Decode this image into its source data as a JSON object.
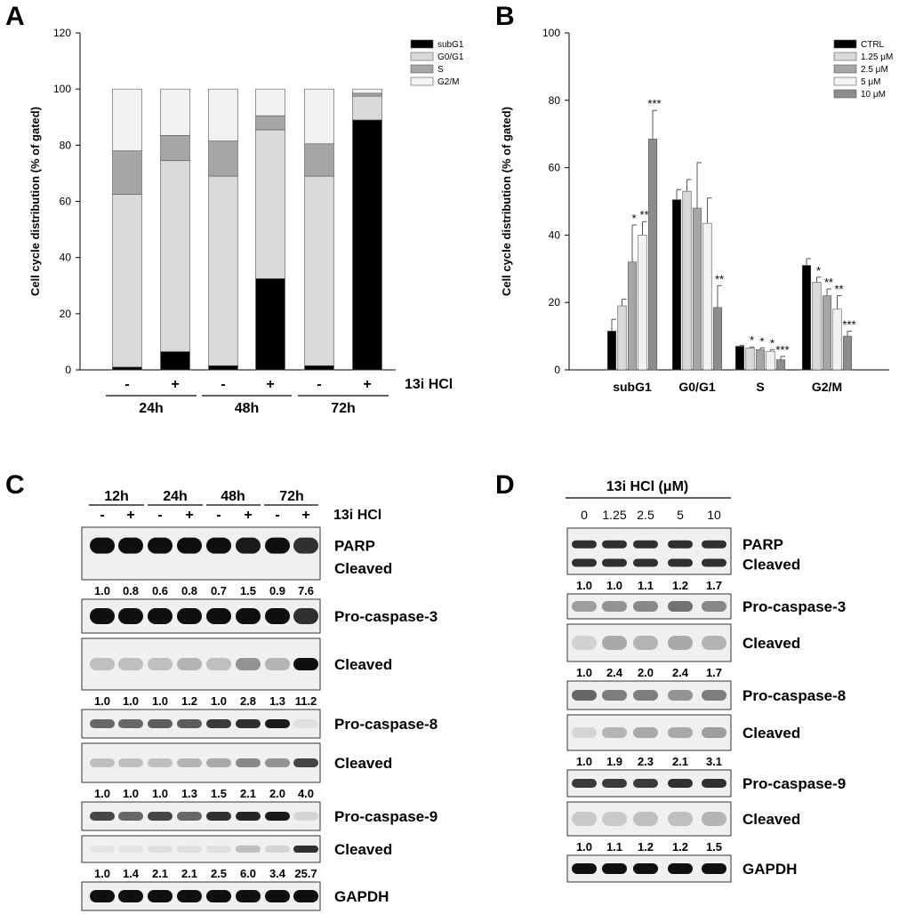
{
  "panels": {
    "A": {
      "letter": "A",
      "chart_data": {
        "type": "bar",
        "stacked": true,
        "ylabel": "Cell cycle distribution (% of gated)",
        "ylim": [
          0,
          120
        ],
        "yticks": [
          0,
          20,
          40,
          60,
          80,
          100,
          120
        ],
        "treatment_label": "13i HCl",
        "categories": [
          "-",
          "+",
          "-",
          "+",
          "-",
          "+"
        ],
        "groups": [
          {
            "label": "24h",
            "bars": [
              0,
              1
            ]
          },
          {
            "label": "48h",
            "bars": [
              2,
              3
            ]
          },
          {
            "label": "72h",
            "bars": [
              4,
              5
            ]
          }
        ],
        "series": [
          {
            "name": "subG1",
            "color": "#000000",
            "values": [
              1,
              6.5,
              1.5,
              32.5,
              1.5,
              89
            ]
          },
          {
            "name": "G0/G1",
            "color": "#d9d9d9",
            "values": [
              61.5,
              68,
              67.5,
              53,
              67.5,
              8.5
            ]
          },
          {
            "name": "S",
            "color": "#a6a6a6",
            "values": [
              15.5,
              9,
              12.5,
              5,
              11.5,
              1
            ]
          },
          {
            "name": "G2/M",
            "color": "#f2f2f2",
            "values": [
              22,
              16.5,
              18.5,
              9.5,
              19.5,
              1.5
            ]
          }
        ]
      }
    },
    "B": {
      "letter": "B",
      "chart_data": {
        "type": "bar",
        "ylabel": "Cell cycle distribution (% of gated)",
        "ylim": [
          0,
          100
        ],
        "yticks": [
          0,
          20,
          40,
          60,
          80,
          100
        ],
        "categories": [
          "subG1",
          "G0/G1",
          "S",
          "G2/M"
        ],
        "series": [
          {
            "name": "CTRL",
            "color": "#000000",
            "values": [
              11.5,
              50.5,
              7,
              31
            ],
            "errors": [
              3.5,
              3,
              0.3,
              2
            ],
            "sig": [
              "",
              "",
              "",
              ""
            ]
          },
          {
            "name": "1.25 μM",
            "color": "#d9d9d9",
            "values": [
              19,
              53,
              6.5,
              26
            ],
            "errors": [
              2,
              3.5,
              0.3,
              1.5
            ],
            "sig": [
              "",
              "",
              "*",
              "*"
            ]
          },
          {
            "name": "2.5 μM",
            "color": "#a6a6a6",
            "values": [
              32,
              48,
              6,
              22
            ],
            "errors": [
              11,
              13.5,
              0.5,
              2
            ],
            "sig": [
              "*",
              "",
              "*",
              "**"
            ]
          },
          {
            "name": "5 μM",
            "color": "#f2f2f2",
            "values": [
              40,
              43.5,
              5.5,
              18
            ],
            "errors": [
              4,
              7.5,
              0.5,
              4
            ],
            "sig": [
              "**",
              "",
              "*",
              "**"
            ]
          },
          {
            "name": "10 μM",
            "color": "#8c8c8c",
            "values": [
              68.5,
              18.5,
              3,
              10
            ],
            "errors": [
              8.5,
              6.5,
              1,
              1.5
            ],
            "sig": [
              "***",
              "**",
              "***",
              "***"
            ]
          }
        ]
      }
    },
    "C": {
      "letter": "C",
      "treatment_label": "13i HCl",
      "time_groups": [
        "12h",
        "24h",
        "48h",
        "72h"
      ],
      "lane_signs": [
        "-",
        "+",
        "-",
        "+",
        "-",
        "+",
        "-",
        "+"
      ],
      "blots": [
        {
          "labels": [
            "PARP",
            "Cleaved"
          ],
          "ratios": [
            "1.0",
            "0.8",
            "0.6",
            "0.8",
            "0.7",
            "1.5",
            "0.9",
            "7.6"
          ]
        },
        {
          "labels": [
            "Pro-caspase-3"
          ],
          "ratios": []
        },
        {
          "labels": [
            "Cleaved"
          ],
          "ratios": [
            "1.0",
            "1.0",
            "1.0",
            "1.2",
            "1.0",
            "2.8",
            "1.3",
            "11.2"
          ]
        },
        {
          "labels": [
            "Pro-caspase-8"
          ],
          "ratios": []
        },
        {
          "labels": [
            "Cleaved"
          ],
          "ratios": [
            "1.0",
            "1.0",
            "1.0",
            "1.3",
            "1.5",
            "2.1",
            "2.0",
            "4.0"
          ]
        },
        {
          "labels": [
            "Pro-caspase-9"
          ],
          "ratios": []
        },
        {
          "labels": [
            "Cleaved"
          ],
          "ratios": [
            "1.0",
            "1.4",
            "2.1",
            "2.1",
            "2.5",
            "6.0",
            "3.4",
            "25.7"
          ]
        },
        {
          "labels": [
            "GAPDH"
          ],
          "ratios": []
        }
      ]
    },
    "D": {
      "letter": "D",
      "treatment_label": "13i HCl (μM)",
      "concentrations": [
        "0",
        "1.25",
        "2.5",
        "5",
        "10"
      ],
      "blots": [
        {
          "labels": [
            "PARP",
            "Cleaved"
          ],
          "ratios": [
            "1.0",
            "1.0",
            "1.1",
            "1.2",
            "1.7"
          ]
        },
        {
          "labels": [
            "Pro-caspase-3"
          ],
          "ratios": []
        },
        {
          "labels": [
            "Cleaved"
          ],
          "ratios": [
            "1.0",
            "2.4",
            "2.0",
            "2.4",
            "1.7"
          ]
        },
        {
          "labels": [
            "Pro-caspase-8"
          ],
          "ratios": []
        },
        {
          "labels": [
            "Cleaved"
          ],
          "ratios": [
            "1.0",
            "1.9",
            "2.3",
            "2.1",
            "3.1"
          ]
        },
        {
          "labels": [
            "Pro-caspase-9"
          ],
          "ratios": []
        },
        {
          "labels": [
            "Cleaved"
          ],
          "ratios": [
            "1.0",
            "1.1",
            "1.2",
            "1.2",
            "1.5"
          ]
        },
        {
          "labels": [
            "GAPDH"
          ],
          "ratios": []
        }
      ]
    }
  }
}
